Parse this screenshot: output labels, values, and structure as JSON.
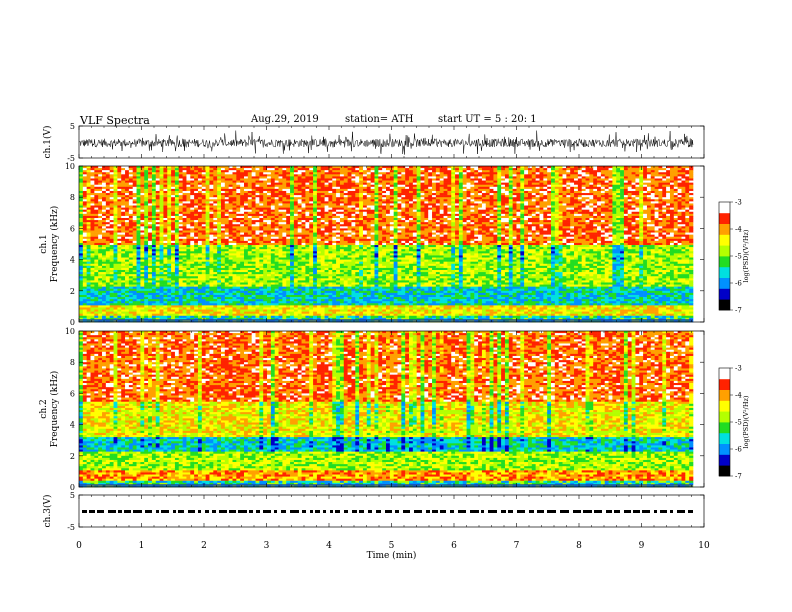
{
  "header": {
    "title": "VLF  Spectra",
    "date": "Aug.29, 2019",
    "station": "station= ATH",
    "start": "start  UT  =    5  : 20: 1"
  },
  "chart_data": [
    {
      "type": "line",
      "panel": "ch1-waveform",
      "ylabel": "ch.1(V)",
      "ylim": [
        -5,
        5
      ],
      "yticks": [
        "5",
        "-5"
      ],
      "xlim": [
        0,
        9.83
      ],
      "series": [
        {
          "values_summary": "noisy waveform around -0.2 V, amplitude ~±3 V"
        }
      ]
    },
    {
      "type": "heatmap",
      "panel": "ch1-spectrogram",
      "ylabel": "ch.1",
      "ylabel2": "Frequency  (kHz)",
      "ylim": [
        0,
        10
      ],
      "yticks": [
        "10",
        "8",
        "6",
        "4",
        "2",
        "0"
      ],
      "xlim": [
        0,
        9.83
      ],
      "colorbar": {
        "label": "log(PSD)(V²/Hz)",
        "range": [
          -7,
          -3
        ],
        "ticks": [
          "-3",
          "-4",
          "-5",
          "-6",
          "-7"
        ]
      },
      "bands_khz": {
        "low_hum": [
          0,
          1.0
        ],
        "blue_band": [
          1.0,
          2.2
        ],
        "green_mid": [
          2.2,
          5.0
        ],
        "red_high": [
          5.0,
          10.0
        ]
      }
    },
    {
      "type": "heatmap",
      "panel": "ch2-spectrogram",
      "ylabel": "ch.2",
      "ylabel2": "Frequency  (kHz)",
      "ylim": [
        0,
        10
      ],
      "yticks": [
        "10",
        "8",
        "6",
        "4",
        "2",
        "0"
      ],
      "xlim": [
        0,
        9.83
      ],
      "colorbar": {
        "label": "log(PSD)(V²/Hz)",
        "range": [
          -7,
          -3
        ],
        "ticks": [
          "-3",
          "-4",
          "-5",
          "-6",
          "-7"
        ]
      },
      "bands_khz": {
        "low_hum": [
          0,
          1.0
        ],
        "green_band": [
          1.0,
          2.2
        ],
        "blue_band": [
          2.2,
          3.2
        ],
        "red_high": [
          3.2,
          10.0
        ]
      }
    },
    {
      "type": "line",
      "panel": "ch3-waveform",
      "ylabel": "ch.3(V)",
      "ylim": [
        -5,
        5
      ],
      "yticks": [
        "5",
        "-5"
      ],
      "xlim": [
        0,
        9.83
      ],
      "series": [
        {
          "values_summary": "dashed black trace at approx 0 V"
        }
      ]
    }
  ],
  "xaxis": {
    "label": "Time  (min)",
    "range": [
      0,
      10
    ],
    "ticks": [
      "0",
      "1",
      "2",
      "3",
      "4",
      "5",
      "6",
      "7",
      "8",
      "9",
      "10"
    ]
  },
  "colors": {
    "palette": [
      "#000000",
      "#0000c8",
      "#0090ff",
      "#00e0e0",
      "#22dd22",
      "#b4ff00",
      "#ffff00",
      "#ffa000",
      "#ff2200",
      "#ffffff"
    ]
  }
}
